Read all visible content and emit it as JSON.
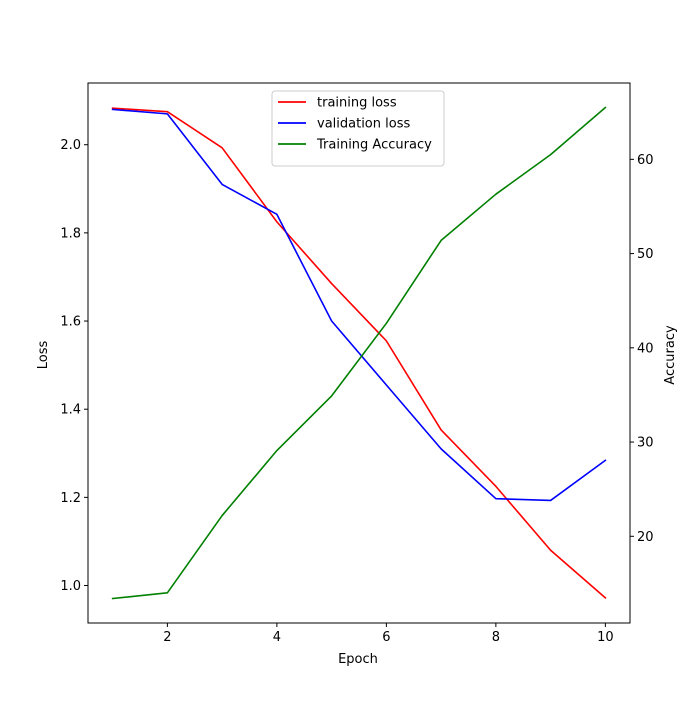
{
  "chart_data": {
    "type": "line",
    "title": "",
    "xlabel": "Epoch",
    "ylabel_left": "Loss",
    "ylabel_right": "Accuracy",
    "x": [
      1,
      2,
      3,
      4,
      5,
      6,
      7,
      8,
      9,
      10
    ],
    "xlim": [
      0.55,
      10.45
    ],
    "ylim_left": [
      0.915,
      2.14
    ],
    "ylim_right": [
      10.8,
      68.1
    ],
    "x_ticks": [
      2,
      4,
      6,
      8,
      10
    ],
    "y_ticks_left": [
      "1.0",
      "1.2",
      "1.4",
      "1.6",
      "1.8",
      "2.0"
    ],
    "y_ticks_right": [
      "20",
      "30",
      "40",
      "50",
      "60"
    ],
    "grid": false,
    "legend_position": "top-center",
    "series": [
      {
        "name": "training loss",
        "axis": "left",
        "color": "#ff0000",
        "values": [
          2.083,
          2.075,
          1.993,
          1.825,
          1.685,
          1.555,
          1.353,
          1.225,
          1.08,
          0.972
        ]
      },
      {
        "name": "validation loss",
        "axis": "left",
        "color": "#0000ff",
        "values": [
          2.08,
          2.07,
          1.91,
          1.842,
          1.6,
          1.455,
          1.31,
          1.197,
          1.193,
          1.284
        ]
      },
      {
        "name": "Training Accuracy",
        "axis": "right",
        "color": "#008000",
        "values": [
          13.4,
          14.0,
          22.2,
          29.1,
          34.9,
          42.6,
          51.4,
          56.3,
          60.5,
          65.5
        ]
      }
    ]
  }
}
